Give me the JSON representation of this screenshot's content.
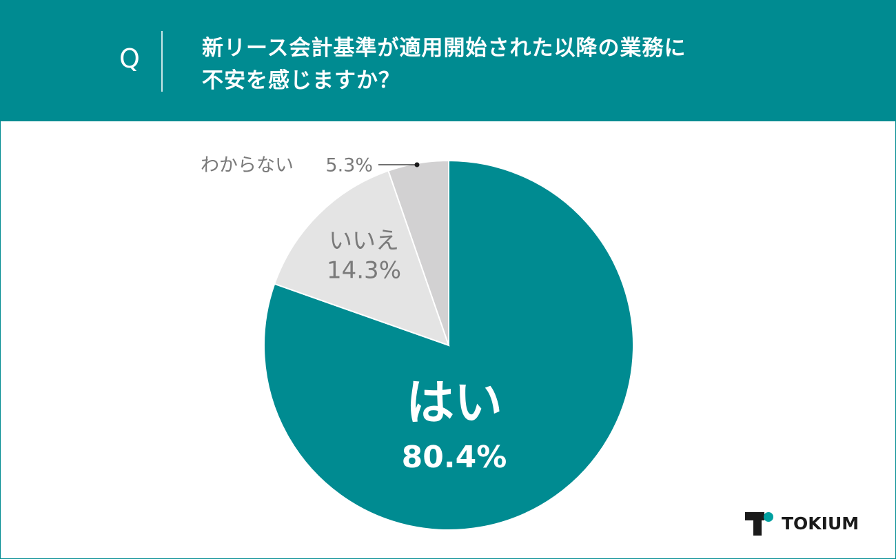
{
  "header": {
    "marker": "Q"
  },
  "logo": "TOKIUM",
  "chart_data": {
    "type": "pie",
    "title": "新リース会計基準が適用開始された以降の業務に\n不安を感じますか？",
    "categories": [
      "はい",
      "いいえ",
      "わからない"
    ],
    "values": [
      80.4,
      14.3,
      5.3
    ],
    "value_labels": [
      "80.4%",
      "14.3%",
      "5.3%"
    ],
    "colors": [
      "#008b91",
      "#e4e4e4",
      "#d2d1d2"
    ]
  }
}
